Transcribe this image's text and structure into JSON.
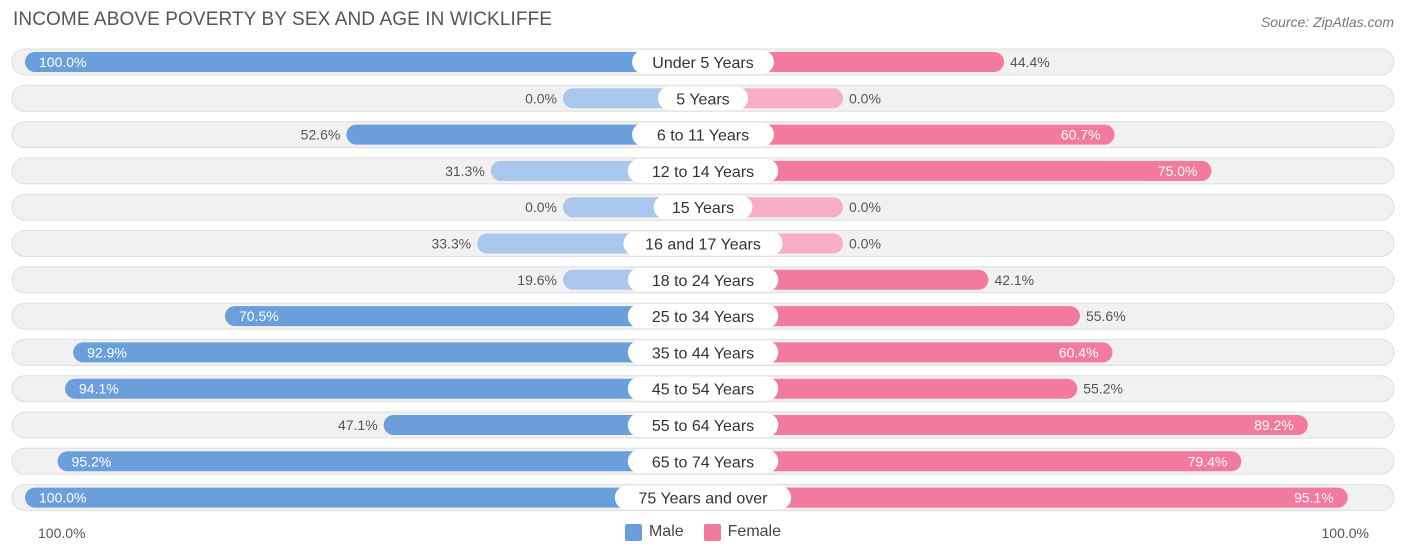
{
  "title": "INCOME ABOVE POVERTY BY SEX AND AGE IN WICKLIFFE",
  "source": "Source: ZipAtlas.com",
  "colors": {
    "male": "#6a9fdc",
    "male_light": "#a9c7ec",
    "female": "#f27a9f",
    "female_light": "#f7afc6",
    "row_bg": "#f1f1f1",
    "row_border": "#dedede"
  },
  "legend": {
    "male_label": "Male",
    "female_label": "Female"
  },
  "axis": {
    "left_label": "100.0%",
    "right_label": "100.0%"
  },
  "chart_data": {
    "type": "bar",
    "orientation": "horizontal-diverging",
    "title": "INCOME ABOVE POVERTY BY SEX AND AGE IN WICKLIFFE",
    "xlim": [
      -100,
      100
    ],
    "categories": [
      "Under 5 Years",
      "5 Years",
      "6 to 11 Years",
      "12 to 14 Years",
      "15 Years",
      "16 and 17 Years",
      "18 to 24 Years",
      "25 to 34 Years",
      "35 to 44 Years",
      "45 to 54 Years",
      "55 to 64 Years",
      "65 to 74 Years",
      "75 Years and over"
    ],
    "series": [
      {
        "name": "Male",
        "values": [
          100.0,
          0.0,
          52.6,
          31.3,
          0.0,
          33.3,
          19.6,
          70.5,
          92.9,
          94.1,
          47.1,
          95.2,
          100.0
        ],
        "labels": [
          "100.0%",
          "0.0%",
          "52.6%",
          "31.3%",
          "0.0%",
          "33.3%",
          "19.6%",
          "70.5%",
          "92.9%",
          "94.1%",
          "47.1%",
          "95.2%",
          "100.0%"
        ]
      },
      {
        "name": "Female",
        "values": [
          44.4,
          0.0,
          60.7,
          75.0,
          0.0,
          0.0,
          42.1,
          55.6,
          60.4,
          55.2,
          89.2,
          79.4,
          95.1
        ],
        "labels": [
          "44.4%",
          "0.0%",
          "60.7%",
          "75.0%",
          "0.0%",
          "0.0%",
          "42.1%",
          "55.6%",
          "60.4%",
          "55.2%",
          "89.2%",
          "79.4%",
          "95.1%"
        ]
      }
    ]
  }
}
